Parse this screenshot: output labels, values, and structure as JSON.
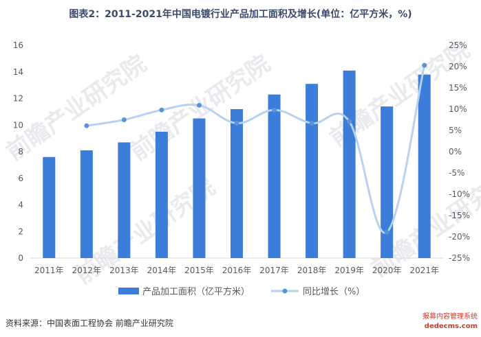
{
  "title": "图表2：2011-2021年中国电镀行业产品加工面积及增长(单位：亿平方米，%)",
  "source": "资料来源：中国表面工程协会 前瞻产业研究院",
  "watermark": "前瞻产业研究院",
  "stamp": {
    "line1": "报募内容管理系统",
    "line2": "dedecms.com"
  },
  "colors": {
    "bar": "#3b7dd8",
    "line": "#b6d2f0",
    "marker": "#5b93d9",
    "axis": "#d9d9d9",
    "tick_text": "#595959"
  },
  "chart_data": {
    "type": "bar+line",
    "categories": [
      "2011年",
      "2012年",
      "2013年",
      "2014年",
      "2015年",
      "2016年",
      "2017年",
      "2018年",
      "2019年",
      "2020年",
      "2021年"
    ],
    "series": [
      {
        "name": "产品加工面积（亿平方米）",
        "type": "bar",
        "axis": "left",
        "values": [
          7.6,
          8.1,
          8.7,
          9.5,
          10.5,
          11.2,
          12.3,
          13.1,
          14.1,
          11.4,
          13.8
        ]
      },
      {
        "name": "同比增长（%）",
        "type": "line",
        "axis": "right",
        "values": [
          null,
          6.1,
          7.5,
          9.8,
          10.9,
          6.7,
          9.8,
          6.7,
          7.1,
          -18.9,
          20.3
        ]
      }
    ],
    "y_left": {
      "min": 0,
      "max": 16,
      "ticks": [
        "0",
        "2",
        "4",
        "6",
        "8",
        "10",
        "12",
        "14",
        "16"
      ]
    },
    "y_right": {
      "min": -25,
      "max": 25,
      "ticks": [
        "-25%",
        "-20%",
        "-15%",
        "-10%",
        "-5%",
        "0%",
        "5%",
        "10%",
        "15%",
        "20%",
        "25%"
      ]
    },
    "grid": false,
    "legend": "bottom"
  }
}
